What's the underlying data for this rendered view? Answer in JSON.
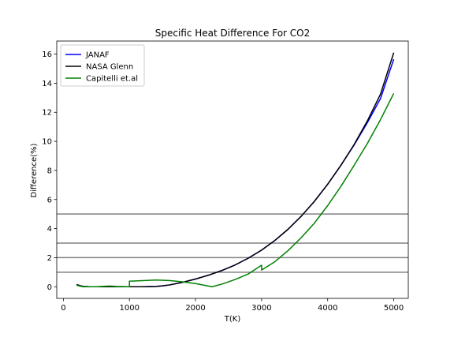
{
  "chart_data": {
    "type": "line",
    "title": "Specific Heat Difference For CO2",
    "xlabel": "T(K)",
    "ylabel": "Difference(%)",
    "xlim": [
      -100,
      5220
    ],
    "ylim": [
      -0.8,
      16.9
    ],
    "xticks": [
      0,
      1000,
      2000,
      3000,
      4000,
      5000
    ],
    "yticks": [
      0,
      2,
      4,
      6,
      8,
      10,
      12,
      14,
      16
    ],
    "grid": false,
    "legend_position": "upper-left",
    "reference_lines": [
      {
        "y": 1,
        "color": "#808080"
      },
      {
        "y": 2,
        "color": "#808080"
      },
      {
        "y": 3,
        "color": "#808080"
      },
      {
        "y": 5,
        "color": "#808080"
      }
    ],
    "series": [
      {
        "name": "JANAF",
        "color": "#0000ff",
        "points": [
          [
            200,
            0.15
          ],
          [
            250,
            0.08
          ],
          [
            300,
            0.02
          ],
          [
            400,
            0.0
          ],
          [
            600,
            0.0
          ],
          [
            800,
            0.0
          ],
          [
            1000,
            0.0
          ],
          [
            1200,
            0.0
          ],
          [
            1400,
            0.02
          ],
          [
            1500,
            0.06
          ],
          [
            1600,
            0.12
          ],
          [
            1800,
            0.3
          ],
          [
            2000,
            0.53
          ],
          [
            2200,
            0.8
          ],
          [
            2400,
            1.12
          ],
          [
            2600,
            1.5
          ],
          [
            2800,
            1.97
          ],
          [
            3000,
            2.52
          ],
          [
            3200,
            3.18
          ],
          [
            3400,
            3.95
          ],
          [
            3600,
            4.85
          ],
          [
            3800,
            5.88
          ],
          [
            4000,
            7.05
          ],
          [
            4200,
            8.35
          ],
          [
            4400,
            9.75
          ],
          [
            4600,
            11.28
          ],
          [
            4800,
            12.95
          ],
          [
            5000,
            15.65
          ]
        ]
      },
      {
        "name": "NASA Glenn",
        "color": "#000000",
        "points": [
          [
            200,
            0.15
          ],
          [
            250,
            0.08
          ],
          [
            300,
            0.02
          ],
          [
            400,
            0.0
          ],
          [
            600,
            0.0
          ],
          [
            800,
            0.0
          ],
          [
            1000,
            0.0
          ],
          [
            1200,
            0.0
          ],
          [
            1400,
            0.02
          ],
          [
            1500,
            0.06
          ],
          [
            1600,
            0.12
          ],
          [
            1800,
            0.3
          ],
          [
            2000,
            0.53
          ],
          [
            2200,
            0.8
          ],
          [
            2400,
            1.12
          ],
          [
            2600,
            1.5
          ],
          [
            2800,
            1.97
          ],
          [
            3000,
            2.52
          ],
          [
            3200,
            3.18
          ],
          [
            3400,
            3.95
          ],
          [
            3600,
            4.85
          ],
          [
            3800,
            5.88
          ],
          [
            4000,
            7.05
          ],
          [
            4200,
            8.35
          ],
          [
            4400,
            9.78
          ],
          [
            4600,
            11.4
          ],
          [
            4800,
            13.25
          ],
          [
            5000,
            16.1
          ]
        ]
      },
      {
        "name": "Capitelli et.al",
        "color": "#008000",
        "points": [
          [
            200,
            0.1
          ],
          [
            250,
            0.05
          ],
          [
            300,
            0.0
          ],
          [
            500,
            0.0
          ],
          [
            700,
            0.05
          ],
          [
            800,
            0.02
          ],
          [
            1000,
            0.0
          ],
          [
            1000,
            0.38
          ],
          [
            1200,
            0.42
          ],
          [
            1400,
            0.46
          ],
          [
            1600,
            0.43
          ],
          [
            1800,
            0.34
          ],
          [
            2000,
            0.22
          ],
          [
            2250,
            0.0
          ],
          [
            2400,
            0.18
          ],
          [
            2600,
            0.5
          ],
          [
            2800,
            0.88
          ],
          [
            3000,
            1.48
          ],
          [
            3000,
            1.15
          ],
          [
            3200,
            1.72
          ],
          [
            3400,
            2.48
          ],
          [
            3600,
            3.38
          ],
          [
            3800,
            4.38
          ],
          [
            4000,
            5.58
          ],
          [
            4200,
            6.9
          ],
          [
            4400,
            8.35
          ],
          [
            4600,
            9.85
          ],
          [
            4800,
            11.5
          ],
          [
            5000,
            13.3
          ]
        ]
      }
    ]
  }
}
